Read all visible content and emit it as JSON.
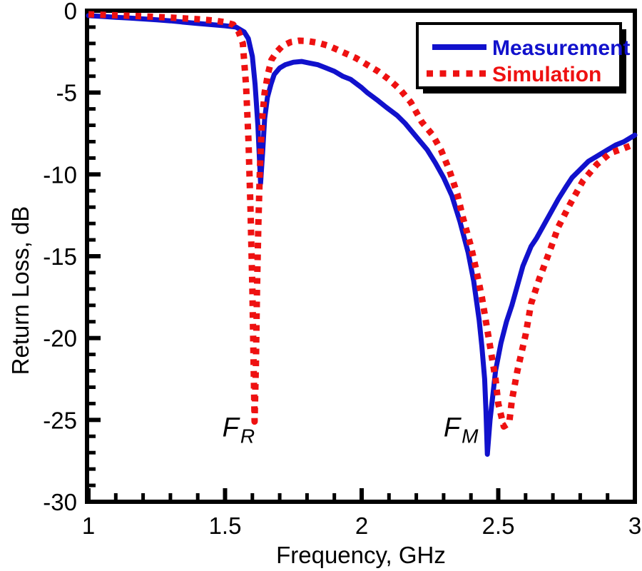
{
  "chart_data": {
    "type": "line",
    "title": "",
    "xlabel": "Frequency, GHz",
    "ylabel": "Return Loss, dB",
    "xlim": [
      1,
      3
    ],
    "ylim": [
      -30,
      0
    ],
    "grid": false,
    "x_major_ticks": [
      1,
      1.5,
      2,
      2.5,
      3
    ],
    "x_tick_labels": [
      "1",
      "1.5",
      "2",
      "2.5",
      "3"
    ],
    "x_minor_step": 0.1,
    "y_major_ticks": [
      0,
      -5,
      -10,
      -15,
      -20,
      -25,
      -30
    ],
    "y_tick_labels": [
      "0",
      "-5",
      "-10",
      "-15",
      "-20",
      "-25",
      "-30"
    ],
    "y_minor_step": 1,
    "legend": {
      "position": "top-right",
      "entries": [
        {
          "label": "Measurement",
          "color": "#1111cc",
          "style": "solid"
        },
        {
          "label": "Simulation",
          "color": "#ee1111",
          "style": "dotted"
        }
      ]
    },
    "annotations": [
      {
        "label": "F",
        "subscript": "R",
        "x": 1.49,
        "y": -26.0
      },
      {
        "label": "F",
        "subscript": "M",
        "x": 2.3,
        "y": -26.0
      }
    ],
    "series": [
      {
        "name": "Measurement",
        "color": "#1111cc",
        "style": "solid",
        "points": [
          [
            1.0,
            -0.3
          ],
          [
            1.05,
            -0.35
          ],
          [
            1.1,
            -0.4
          ],
          [
            1.15,
            -0.45
          ],
          [
            1.2,
            -0.5
          ],
          [
            1.25,
            -0.56
          ],
          [
            1.3,
            -0.62
          ],
          [
            1.35,
            -0.7
          ],
          [
            1.4,
            -0.78
          ],
          [
            1.45,
            -0.85
          ],
          [
            1.5,
            -0.92
          ],
          [
            1.54,
            -1.0
          ],
          [
            1.57,
            -1.3
          ],
          [
            1.585,
            -1.7
          ],
          [
            1.6,
            -2.8
          ],
          [
            1.61,
            -4.5
          ],
          [
            1.62,
            -7.0
          ],
          [
            1.63,
            -10.55
          ],
          [
            1.638,
            -8.5
          ],
          [
            1.645,
            -6.6
          ],
          [
            1.655,
            -5.3
          ],
          [
            1.668,
            -4.5
          ],
          [
            1.68,
            -3.9
          ],
          [
            1.7,
            -3.5
          ],
          [
            1.72,
            -3.3
          ],
          [
            1.75,
            -3.15
          ],
          [
            1.78,
            -3.1
          ],
          [
            1.81,
            -3.2
          ],
          [
            1.84,
            -3.3
          ],
          [
            1.87,
            -3.5
          ],
          [
            1.9,
            -3.7
          ],
          [
            1.93,
            -4.0
          ],
          [
            1.96,
            -4.2
          ],
          [
            2.0,
            -4.7
          ],
          [
            2.02,
            -5.0
          ],
          [
            2.06,
            -5.5
          ],
          [
            2.09,
            -5.9
          ],
          [
            2.13,
            -6.4
          ],
          [
            2.16,
            -6.9
          ],
          [
            2.2,
            -7.7
          ],
          [
            2.24,
            -8.5
          ],
          [
            2.27,
            -9.3
          ],
          [
            2.3,
            -10.2
          ],
          [
            2.33,
            -11.3
          ],
          [
            2.36,
            -12.9
          ],
          [
            2.39,
            -14.8
          ],
          [
            2.41,
            -16.5
          ],
          [
            2.43,
            -18.9
          ],
          [
            2.44,
            -20.5
          ],
          [
            2.45,
            -22.5
          ],
          [
            2.455,
            -24.5
          ],
          [
            2.46,
            -27.1
          ],
          [
            2.47,
            -25.0
          ],
          [
            2.478,
            -23.8
          ],
          [
            2.49,
            -22.0
          ],
          [
            2.51,
            -20.3
          ],
          [
            2.53,
            -19.0
          ],
          [
            2.55,
            -18.0
          ],
          [
            2.57,
            -16.8
          ],
          [
            2.59,
            -15.6
          ],
          [
            2.62,
            -14.4
          ],
          [
            2.64,
            -13.9
          ],
          [
            2.68,
            -12.7
          ],
          [
            2.72,
            -11.5
          ],
          [
            2.75,
            -10.7
          ],
          [
            2.77,
            -10.2
          ],
          [
            2.8,
            -9.7
          ],
          [
            2.83,
            -9.2
          ],
          [
            2.86,
            -8.9
          ],
          [
            2.9,
            -8.5
          ],
          [
            2.93,
            -8.2
          ],
          [
            2.96,
            -8.0
          ],
          [
            3.0,
            -7.6
          ]
        ]
      },
      {
        "name": "Simulation",
        "color": "#ee1111",
        "style": "dotted",
        "points": [
          [
            1.0,
            -0.22
          ],
          [
            1.1,
            -0.28
          ],
          [
            1.2,
            -0.34
          ],
          [
            1.3,
            -0.42
          ],
          [
            1.4,
            -0.52
          ],
          [
            1.46,
            -0.6
          ],
          [
            1.5,
            -0.7
          ],
          [
            1.53,
            -0.85
          ],
          [
            1.55,
            -1.3
          ],
          [
            1.565,
            -2.0
          ],
          [
            1.577,
            -4.6
          ],
          [
            1.586,
            -8.0
          ],
          [
            1.593,
            -12.0
          ],
          [
            1.6,
            -17.0
          ],
          [
            1.604,
            -21.0
          ],
          [
            1.608,
            -25.1
          ],
          [
            1.613,
            -21.5
          ],
          [
            1.617,
            -17.0
          ],
          [
            1.622,
            -13.0
          ],
          [
            1.628,
            -9.5
          ],
          [
            1.635,
            -6.8
          ],
          [
            1.645,
            -5.0
          ],
          [
            1.658,
            -3.8
          ],
          [
            1.67,
            -3.0
          ],
          [
            1.69,
            -2.5
          ],
          [
            1.71,
            -2.15
          ],
          [
            1.74,
            -1.92
          ],
          [
            1.77,
            -1.83
          ],
          [
            1.8,
            -1.85
          ],
          [
            1.84,
            -1.96
          ],
          [
            1.88,
            -2.15
          ],
          [
            1.9,
            -2.3
          ],
          [
            1.94,
            -2.6
          ],
          [
            1.98,
            -2.9
          ],
          [
            2.02,
            -3.3
          ],
          [
            2.06,
            -3.7
          ],
          [
            2.1,
            -4.2
          ],
          [
            2.14,
            -4.8
          ],
          [
            2.18,
            -5.6
          ],
          [
            2.22,
            -6.8
          ],
          [
            2.26,
            -7.6
          ],
          [
            2.29,
            -8.5
          ],
          [
            2.32,
            -9.7
          ],
          [
            2.35,
            -11.2
          ],
          [
            2.37,
            -12.6
          ],
          [
            2.4,
            -14.4
          ],
          [
            2.42,
            -15.9
          ],
          [
            2.44,
            -17.5
          ],
          [
            2.46,
            -19.5
          ],
          [
            2.48,
            -21.5
          ],
          [
            2.49,
            -22.5
          ],
          [
            2.5,
            -24.0
          ],
          [
            2.52,
            -25.4
          ],
          [
            2.54,
            -25.2
          ],
          [
            2.55,
            -23.8
          ],
          [
            2.57,
            -22.0
          ],
          [
            2.6,
            -19.8
          ],
          [
            2.62,
            -17.9
          ],
          [
            2.65,
            -16.4
          ],
          [
            2.69,
            -14.6
          ],
          [
            2.72,
            -13.2
          ],
          [
            2.76,
            -11.9
          ],
          [
            2.81,
            -10.4
          ],
          [
            2.86,
            -9.4
          ],
          [
            2.91,
            -8.7
          ],
          [
            2.96,
            -8.4
          ],
          [
            3.0,
            -8.15
          ]
        ]
      }
    ],
    "style": {
      "axis_color": "#000000",
      "background": "#ffffff",
      "measurement_line_width": 7,
      "simulation_dot_size": 9
    }
  }
}
